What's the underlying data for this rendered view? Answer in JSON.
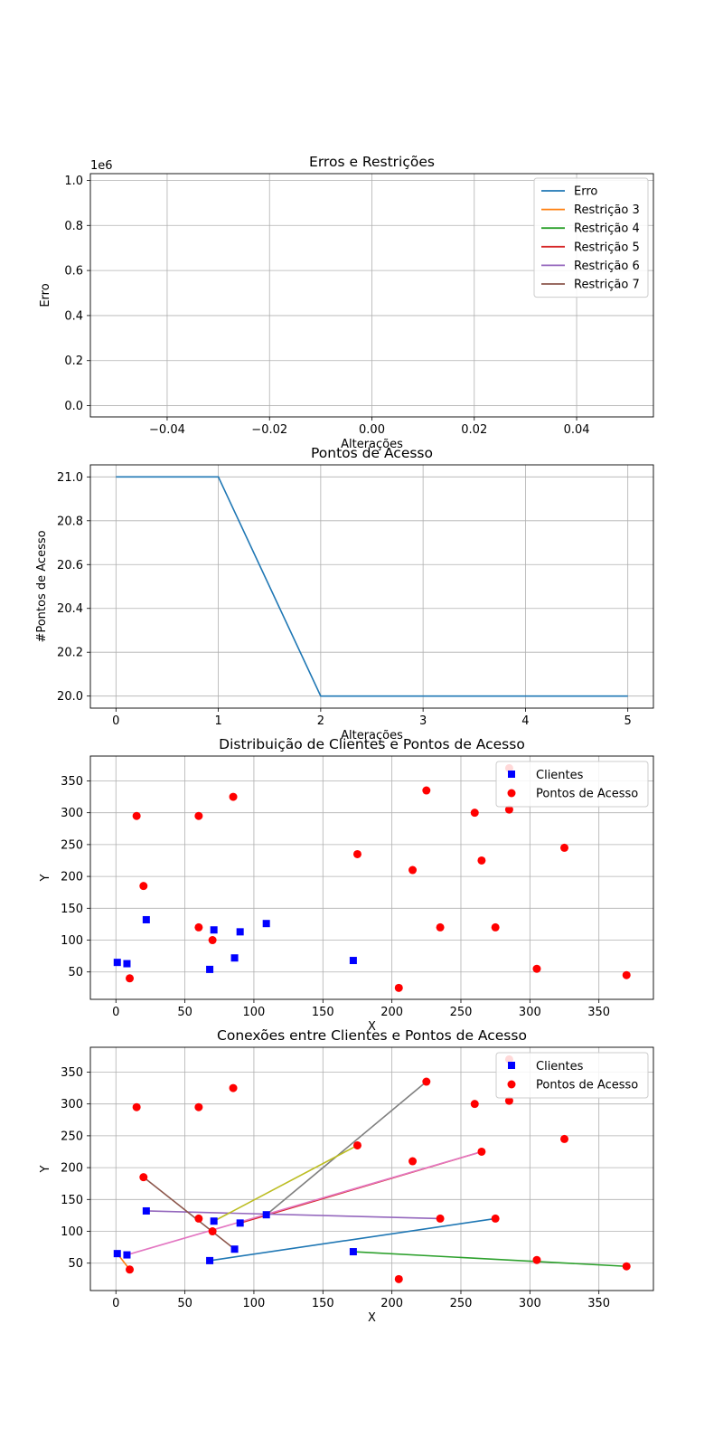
{
  "chart_data": [
    {
      "type": "line",
      "title": "Erros e Restrições",
      "xlabel": "Alterações",
      "ylabel": "Erro",
      "offset_label": "1e6",
      "xlim": [
        -0.055,
        0.055
      ],
      "ylim": [
        -0.05,
        1.03
      ],
      "xticks": [
        -0.04,
        -0.02,
        0.0,
        0.02,
        0.04
      ],
      "xtick_labels": [
        "−0.04",
        "−0.02",
        "0.00",
        "0.02",
        "0.04"
      ],
      "yticks": [
        0.0,
        0.2,
        0.4,
        0.6,
        0.8,
        1.0
      ],
      "ytick_labels": [
        "0.0",
        "0.2",
        "0.4",
        "0.6",
        "0.8",
        "1.0"
      ],
      "grid": true,
      "legend_position": "top-right",
      "series": [
        {
          "name": "Erro",
          "color": "#1f77b4",
          "x": [],
          "y": []
        },
        {
          "name": "Restrição 3",
          "color": "#ff7f0e",
          "x": [],
          "y": []
        },
        {
          "name": "Restrição 4",
          "color": "#2ca02c",
          "x": [],
          "y": []
        },
        {
          "name": "Restrição 5",
          "color": "#d62728",
          "x": [],
          "y": []
        },
        {
          "name": "Restrição 6",
          "color": "#9467bd",
          "x": [],
          "y": []
        },
        {
          "name": "Restrição 7",
          "color": "#8c564b",
          "x": [],
          "y": []
        }
      ]
    },
    {
      "type": "line",
      "title": "Pontos de Acesso",
      "xlabel": "Alterações",
      "ylabel": "#Pontos de Acesso",
      "xlim": [
        -0.25,
        5.25
      ],
      "ylim": [
        19.945,
        21.055
      ],
      "xticks": [
        0,
        1,
        2,
        3,
        4,
        5
      ],
      "xtick_labels": [
        "0",
        "1",
        "2",
        "3",
        "4",
        "5"
      ],
      "yticks": [
        20.0,
        20.2,
        20.4,
        20.6,
        20.8,
        21.0
      ],
      "ytick_labels": [
        "20.0",
        "20.2",
        "20.4",
        "20.6",
        "20.8",
        "21.0"
      ],
      "grid": true,
      "series": [
        {
          "color": "#1f77b4",
          "x": [
            0,
            1,
            2,
            3,
            4,
            5
          ],
          "y": [
            21,
            21,
            20,
            20,
            20,
            20
          ]
        }
      ]
    },
    {
      "type": "scatter",
      "title": "Distribuição de Clientes e Pontos de Acesso",
      "xlabel": "X",
      "ylabel": "Y",
      "xlim": [
        -18.5,
        389.5
      ],
      "ylim": [
        7,
        389
      ],
      "xticks": [
        0,
        50,
        100,
        150,
        200,
        250,
        300,
        350
      ],
      "xtick_labels": [
        "0",
        "50",
        "100",
        "150",
        "200",
        "250",
        "300",
        "350"
      ],
      "yticks": [
        50,
        100,
        150,
        200,
        250,
        300,
        350
      ],
      "ytick_labels": [
        "50",
        "100",
        "150",
        "200",
        "250",
        "300",
        "350"
      ],
      "grid": true,
      "legend_position": "top-right",
      "clients": {
        "name": "Clientes",
        "color": "#0000ff",
        "marker": "square",
        "points": [
          [
            1,
            65
          ],
          [
            8,
            63
          ],
          [
            22,
            132
          ],
          [
            68,
            54
          ],
          [
            71,
            116
          ],
          [
            86,
            72
          ],
          [
            90,
            113
          ],
          [
            109,
            126
          ],
          [
            172,
            68
          ]
        ]
      },
      "access_points": {
        "name": "Pontos de Acesso",
        "color": "#ff0000",
        "marker": "circle",
        "points": [
          [
            10,
            40
          ],
          [
            15,
            295
          ],
          [
            20,
            185
          ],
          [
            60,
            295
          ],
          [
            60,
            120
          ],
          [
            70,
            100
          ],
          [
            85,
            325
          ],
          [
            175,
            235
          ],
          [
            205,
            25
          ],
          [
            215,
            210
          ],
          [
            225,
            335
          ],
          [
            235,
            120
          ],
          [
            260,
            300
          ],
          [
            265,
            225
          ],
          [
            275,
            120
          ],
          [
            285,
            305
          ],
          [
            285,
            370
          ],
          [
            305,
            55
          ],
          [
            325,
            245
          ],
          [
            370,
            45
          ]
        ]
      }
    },
    {
      "type": "scatter",
      "title": "Conexões entre Clientes e Pontos de Acesso",
      "xlabel": "X",
      "ylabel": "Y",
      "xlim": [
        -18.5,
        389.5
      ],
      "ylim": [
        7,
        389
      ],
      "xticks": [
        0,
        50,
        100,
        150,
        200,
        250,
        300,
        350
      ],
      "xtick_labels": [
        "0",
        "50",
        "100",
        "150",
        "200",
        "250",
        "300",
        "350"
      ],
      "yticks": [
        50,
        100,
        150,
        200,
        250,
        300,
        350
      ],
      "ytick_labels": [
        "50",
        "100",
        "150",
        "200",
        "250",
        "300",
        "350"
      ],
      "grid": true,
      "legend_position": "top-right",
      "clients": {
        "name": "Clientes",
        "color": "#0000ff",
        "marker": "square",
        "points": [
          [
            1,
            65
          ],
          [
            8,
            63
          ],
          [
            22,
            132
          ],
          [
            68,
            54
          ],
          [
            71,
            116
          ],
          [
            86,
            72
          ],
          [
            90,
            113
          ],
          [
            109,
            126
          ],
          [
            172,
            68
          ]
        ]
      },
      "access_points": {
        "name": "Pontos de Acesso",
        "color": "#ff0000",
        "marker": "circle",
        "points": [
          [
            10,
            40
          ],
          [
            15,
            295
          ],
          [
            20,
            185
          ],
          [
            60,
            295
          ],
          [
            60,
            120
          ],
          [
            70,
            100
          ],
          [
            85,
            325
          ],
          [
            175,
            235
          ],
          [
            205,
            25
          ],
          [
            215,
            210
          ],
          [
            225,
            335
          ],
          [
            235,
            120
          ],
          [
            260,
            300
          ],
          [
            265,
            225
          ],
          [
            275,
            120
          ],
          [
            285,
            305
          ],
          [
            285,
            370
          ],
          [
            305,
            55
          ],
          [
            325,
            245
          ],
          [
            370,
            45
          ]
        ]
      },
      "connections": [
        {
          "from": [
            68,
            54
          ],
          "to": [
            275,
            120
          ],
          "color": "#1f77b4"
        },
        {
          "from": [
            1,
            65
          ],
          "to": [
            10,
            40
          ],
          "color": "#ff7f0e"
        },
        {
          "from": [
            172,
            68
          ],
          "to": [
            370,
            45
          ],
          "color": "#2ca02c"
        },
        {
          "from": [
            90,
            113
          ],
          "to": [
            265,
            225
          ],
          "color": "#d62728"
        },
        {
          "from": [
            22,
            132
          ],
          "to": [
            235,
            120
          ],
          "color": "#9467bd"
        },
        {
          "from": [
            86,
            72
          ],
          "to": [
            20,
            185
          ],
          "color": "#8c564b"
        },
        {
          "from": [
            8,
            63
          ],
          "to": [
            265,
            225
          ],
          "color": "#e377c2"
        },
        {
          "from": [
            109,
            126
          ],
          "to": [
            225,
            335
          ],
          "color": "#7f7f7f"
        },
        {
          "from": [
            71,
            116
          ],
          "to": [
            175,
            235
          ],
          "color": "#bcbd22"
        }
      ]
    }
  ]
}
